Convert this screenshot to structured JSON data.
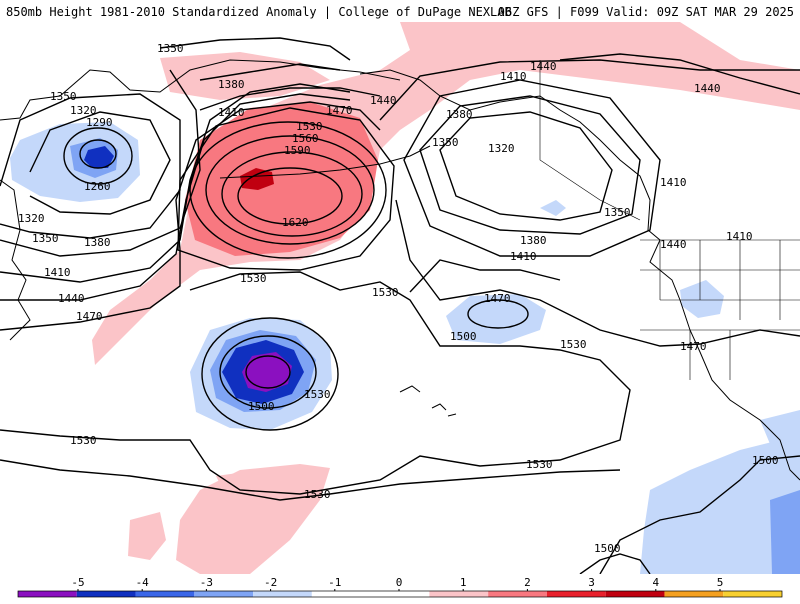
{
  "header": {
    "title_left": "850mb Height 1981-2010 Standardized Anomaly | College of DuPage NEXLAB",
    "title_right": "06Z GFS | F099 Valid: 09Z SAT MAR 29 2025"
  },
  "map": {
    "contour_labels": [
      {
        "id": "c01",
        "text": "1350"
      },
      {
        "id": "c02",
        "text": "1350"
      },
      {
        "id": "c03",
        "text": "1320"
      },
      {
        "id": "c04",
        "text": "1290"
      },
      {
        "id": "c05",
        "text": "1260"
      },
      {
        "id": "c06",
        "text": "1320"
      },
      {
        "id": "c07",
        "text": "1350"
      },
      {
        "id": "c08",
        "text": "1380"
      },
      {
        "id": "c09",
        "text": "1410"
      },
      {
        "id": "c10",
        "text": "1440"
      },
      {
        "id": "c11",
        "text": "1470"
      },
      {
        "id": "c12",
        "text": "1380"
      },
      {
        "id": "c13",
        "text": "1410"
      },
      {
        "id": "c14",
        "text": "1470"
      },
      {
        "id": "c15",
        "text": "1530"
      },
      {
        "id": "c16",
        "text": "1560"
      },
      {
        "id": "c17",
        "text": "1590"
      },
      {
        "id": "c18",
        "text": "1620"
      },
      {
        "id": "c19",
        "text": "1440"
      },
      {
        "id": "c20",
        "text": "1530"
      },
      {
        "id": "c21",
        "text": "1530"
      },
      {
        "id": "c22",
        "text": "1410"
      },
      {
        "id": "c23",
        "text": "1440"
      },
      {
        "id": "c24",
        "text": "1380"
      },
      {
        "id": "c25",
        "text": "1350"
      },
      {
        "id": "c26",
        "text": "1320"
      },
      {
        "id": "c27",
        "text": "1440"
      },
      {
        "id": "c28",
        "text": "1410"
      },
      {
        "id": "c29",
        "text": "1350"
      },
      {
        "id": "c30",
        "text": "1380"
      },
      {
        "id": "c31",
        "text": "1410"
      },
      {
        "id": "c32",
        "text": "1440"
      },
      {
        "id": "c33",
        "text": "1410"
      },
      {
        "id": "c34",
        "text": "1470"
      },
      {
        "id": "c35",
        "text": "1500"
      },
      {
        "id": "c36",
        "text": "1530"
      },
      {
        "id": "c37",
        "text": "1470"
      },
      {
        "id": "c38",
        "text": "1530"
      },
      {
        "id": "c39",
        "text": "1500"
      },
      {
        "id": "c40",
        "text": "1530"
      },
      {
        "id": "c41",
        "text": "1530"
      },
      {
        "id": "c42",
        "text": "1530"
      },
      {
        "id": "c43",
        "text": "1500"
      },
      {
        "id": "c44",
        "text": "1500"
      }
    ]
  },
  "colorbar": {
    "ticks": [
      "-5",
      "-4",
      "-3",
      "-2",
      "-1",
      "0",
      "1",
      "2",
      "3",
      "4",
      "5"
    ],
    "colors": [
      "#8b10c0",
      "#1030c0",
      "#3a66e8",
      "#7fa4f4",
      "#c4d8fa",
      "#ffffff",
      "#ffffff",
      "#fbc4c8",
      "#f87880",
      "#e8202c",
      "#c00010",
      "#f4a020",
      "#f8d030"
    ]
  }
}
